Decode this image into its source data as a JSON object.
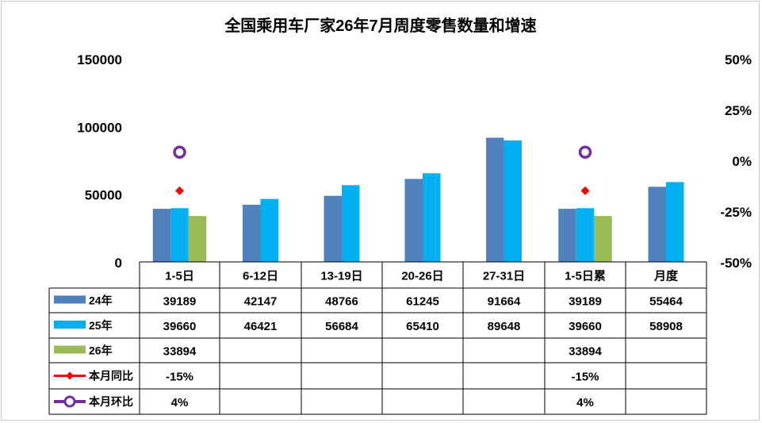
{
  "chart_data": {
    "type": "bar",
    "title": "全国乘用车厂家26年7月周度零售数量和增速",
    "categories": [
      "1-5日",
      "6-12日",
      "13-19日",
      "20-26日",
      "27-31日",
      "1-5日累",
      "月度"
    ],
    "y_left": {
      "ticks": [
        "150000",
        "100000",
        "50000",
        "0"
      ],
      "ylim": [
        0,
        150000
      ]
    },
    "y_right": {
      "ticks": [
        "50%",
        "25%",
        "0%",
        "-25%",
        "-50%"
      ],
      "ylim": [
        -50,
        50
      ]
    },
    "series": [
      {
        "name": "24年",
        "kind": "bar",
        "color": "#4f81bd",
        "values": [
          39189,
          42147,
          48766,
          61245,
          91664,
          39189,
          55464
        ],
        "labels": [
          "39189",
          "42147",
          "48766",
          "61245",
          "91664",
          "39189",
          "55464"
        ]
      },
      {
        "name": "25年",
        "kind": "bar",
        "color": "#00b0f0",
        "values": [
          39660,
          46421,
          56684,
          65410,
          89648,
          39660,
          58908
        ],
        "labels": [
          "39660",
          "46421",
          "56684",
          "65410",
          "89648",
          "39660",
          "58908"
        ]
      },
      {
        "name": "26年",
        "kind": "bar",
        "color": "#9bbb59",
        "values": [
          33894,
          null,
          null,
          null,
          null,
          33894,
          null
        ],
        "labels": [
          "33894",
          "",
          "",
          "",
          "",
          "33894",
          ""
        ]
      },
      {
        "name": "本月同比",
        "kind": "marker",
        "axis": "right",
        "marker": "diamond",
        "color": "#ff0000",
        "values": [
          -15,
          null,
          null,
          null,
          null,
          -15,
          null
        ],
        "labels": [
          "-15%",
          "",
          "",
          "",
          "",
          "-15%",
          ""
        ]
      },
      {
        "name": "本月环比",
        "kind": "marker",
        "axis": "right",
        "marker": "circle",
        "color": "#7030a0",
        "values": [
          4,
          null,
          null,
          null,
          null,
          4,
          null
        ],
        "labels": [
          "4%",
          "",
          "",
          "",
          "",
          "4%",
          ""
        ]
      }
    ],
    "grid": false,
    "legend": "data-table"
  }
}
